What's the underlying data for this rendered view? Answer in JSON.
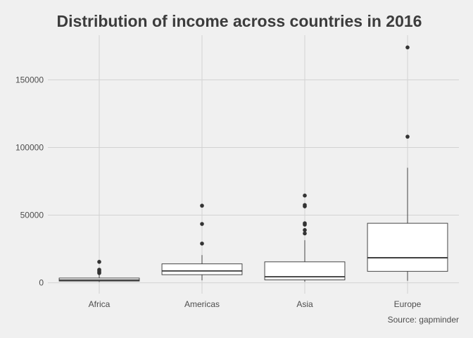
{
  "chart_data": {
    "type": "box",
    "title": "Distribution of income across countries in 2016",
    "caption": "Source: gapminder",
    "xlabel": "",
    "ylabel": "",
    "categories": [
      "Africa",
      "Americas",
      "Asia",
      "Europe"
    ],
    "ylim": [
      -8000,
      183000
    ],
    "yticks": [
      0,
      50000,
      100000,
      150000
    ],
    "ytick_labels": [
      "0",
      "50000",
      "100000",
      "150000"
    ],
    "grid": true,
    "boxes": [
      {
        "category": "Africa",
        "whisker_low": 600,
        "q1": 1300,
        "median": 2000,
        "q3": 3500,
        "whisker_high": 6200,
        "outliers": [
          7200,
          8000,
          8900,
          9700,
          15500
        ]
      },
      {
        "category": "Americas",
        "whisker_low": 1800,
        "q1": 6000,
        "median": 8800,
        "q3": 14000,
        "whisker_high": 20500,
        "outliers": [
          29000,
          43500,
          57000
        ]
      },
      {
        "category": "Asia",
        "whisker_low": 800,
        "q1": 2200,
        "median": 4500,
        "q3": 15500,
        "whisker_high": 31500,
        "outliers": [
          36500,
          39000,
          43000,
          44000,
          56500,
          57500,
          64500
        ]
      },
      {
        "category": "Europe",
        "whisker_low": 1500,
        "q1": 8500,
        "median": 18500,
        "q3": 44000,
        "whisker_high": 85000,
        "outliers": [
          108000,
          174000
        ]
      }
    ]
  }
}
